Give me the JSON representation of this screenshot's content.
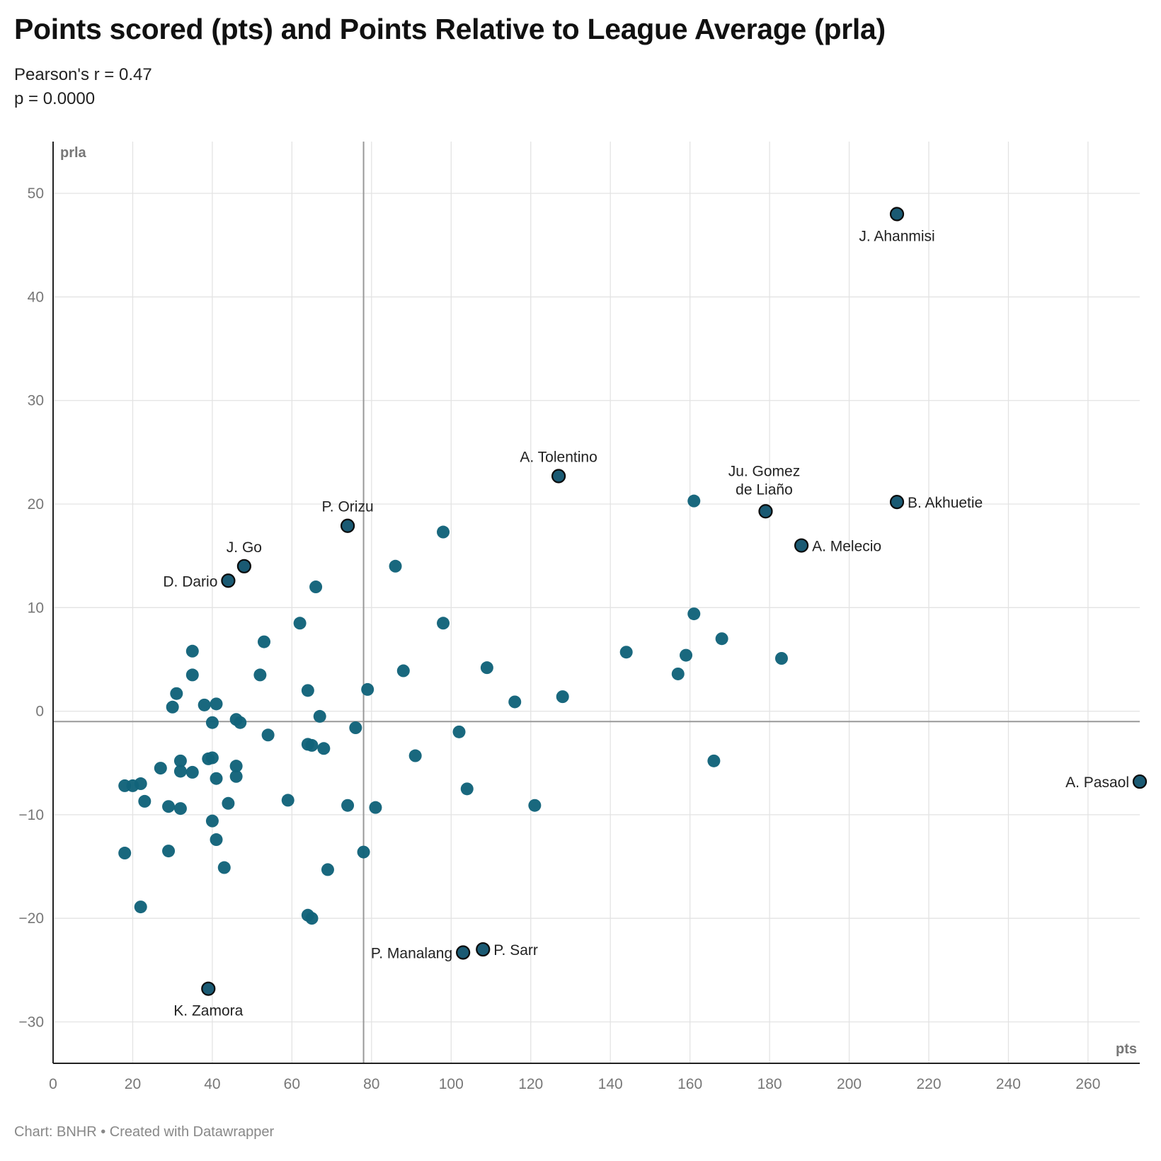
{
  "header": {
    "title": "Points scored (pts) and Points Relative to League Average (prla)",
    "subtitle_line1": "Pearson's r = 0.47",
    "subtitle_line2": "p = 0.0000"
  },
  "footer": {
    "credit": "Chart: BNHR • Created with Datawrapper"
  },
  "colors": {
    "dot": "#12637a",
    "dot_highlight": "#1a5a73",
    "dot_outline": "#0b0b0b",
    "grid": "#e3e3e3",
    "reference_line": "#999999",
    "axis": "#222222"
  },
  "chart_data": {
    "type": "scatter",
    "xlabel": "pts",
    "ylabel": "prla",
    "xlim": [
      0,
      273
    ],
    "ylim": [
      -34,
      55
    ],
    "x_ticks": [
      0,
      20,
      40,
      60,
      80,
      100,
      120,
      140,
      160,
      180,
      200,
      220,
      240,
      260
    ],
    "y_ticks": [
      -30,
      -20,
      -10,
      0,
      10,
      20,
      30,
      40,
      50
    ],
    "reference_lines": {
      "x": 78,
      "y": -1
    },
    "grid": true,
    "labeled_points": [
      {
        "label": "J. Ahanmisi",
        "x": 212,
        "y": 48
      },
      {
        "label": "A. Tolentino",
        "x": 127,
        "y": 22.7
      },
      {
        "label": "Ju. Gomez de Liaño",
        "label_lines": [
          "Ju. Gomez",
          "de Liaño"
        ],
        "x": 179,
        "y": 19.3
      },
      {
        "label": "B. Akhuetie",
        "x": 212,
        "y": 20.2
      },
      {
        "label": "A. Melecio",
        "x": 188,
        "y": 16
      },
      {
        "label": "P. Orizu",
        "x": 74,
        "y": 17.9
      },
      {
        "label": "J. Go",
        "x": 48,
        "y": 14
      },
      {
        "label": "D. Dario",
        "x": 44,
        "y": 12.6
      },
      {
        "label": "A. Pasaol",
        "x": 273,
        "y": -6.8
      },
      {
        "label": "P. Manalang",
        "x": 103,
        "y": -23.3
      },
      {
        "label": "P. Sarr",
        "x": 108,
        "y": -23
      },
      {
        "label": "K. Zamora",
        "x": 39,
        "y": -26.8
      }
    ],
    "points": [
      [
        161,
        20.3
      ],
      [
        98,
        17.3
      ],
      [
        86,
        14
      ],
      [
        66,
        12
      ],
      [
        62,
        8.5
      ],
      [
        98,
        8.5
      ],
      [
        161,
        9.4
      ],
      [
        53,
        6.7
      ],
      [
        35,
        5.8
      ],
      [
        144,
        5.7
      ],
      [
        168,
        7
      ],
      [
        159,
        5.4
      ],
      [
        183,
        5.1
      ],
      [
        88,
        3.9
      ],
      [
        109,
        4.2
      ],
      [
        35,
        3.5
      ],
      [
        52,
        3.5
      ],
      [
        157,
        3.6
      ],
      [
        31,
        1.7
      ],
      [
        64,
        2
      ],
      [
        79,
        2.1
      ],
      [
        128,
        1.4
      ],
      [
        116,
        0.9
      ],
      [
        38,
        0.6
      ],
      [
        41,
        0.7
      ],
      [
        30,
        0.4
      ],
      [
        67,
        -0.5
      ],
      [
        46,
        -0.8
      ],
      [
        40,
        -1.1
      ],
      [
        47,
        -1.1
      ],
      [
        76,
        -1.6
      ],
      [
        102,
        -2
      ],
      [
        54,
        -2.3
      ],
      [
        64,
        -3.2
      ],
      [
        65,
        -3.3
      ],
      [
        68,
        -3.6
      ],
      [
        91,
        -4.3
      ],
      [
        166,
        -4.8
      ],
      [
        32,
        -4.8
      ],
      [
        39,
        -4.6
      ],
      [
        40,
        -4.5
      ],
      [
        46,
        -5.3
      ],
      [
        27,
        -5.5
      ],
      [
        32,
        -5.8
      ],
      [
        35,
        -5.9
      ],
      [
        46,
        -6.3
      ],
      [
        41,
        -6.5
      ],
      [
        22,
        -7
      ],
      [
        18,
        -7.2
      ],
      [
        20,
        -7.2
      ],
      [
        104,
        -7.5
      ],
      [
        59,
        -8.6
      ],
      [
        23,
        -8.7
      ],
      [
        44,
        -8.9
      ],
      [
        29,
        -9.2
      ],
      [
        32,
        -9.4
      ],
      [
        74,
        -9.1
      ],
      [
        81,
        -9.3
      ],
      [
        121,
        -9.1
      ],
      [
        40,
        -10.6
      ],
      [
        41,
        -12.4
      ],
      [
        18,
        -13.7
      ],
      [
        29,
        -13.5
      ],
      [
        78,
        -13.6
      ],
      [
        43,
        -15.1
      ],
      [
        69,
        -15.3
      ],
      [
        22,
        -18.9
      ],
      [
        64,
        -19.7
      ],
      [
        65,
        -20
      ]
    ]
  }
}
